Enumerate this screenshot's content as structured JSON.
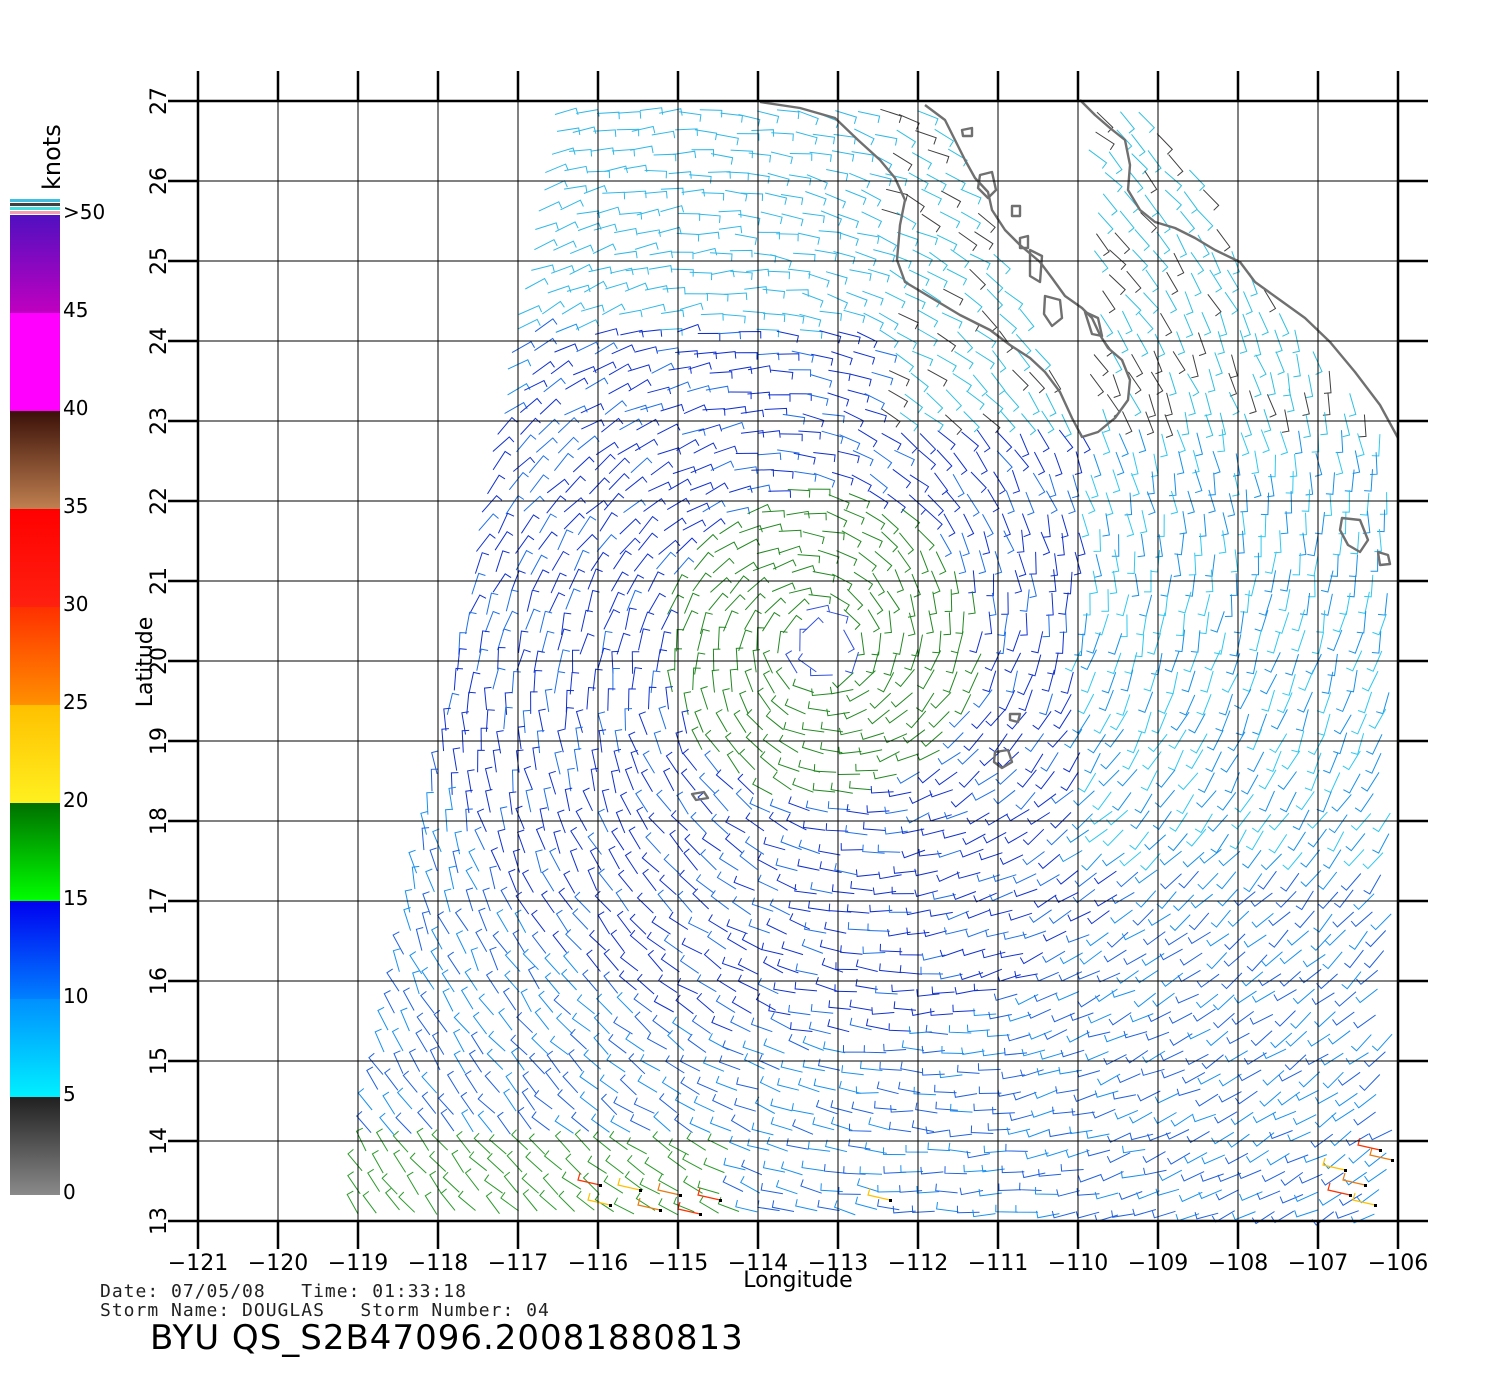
{
  "colorbar": {
    "unit": "knots",
    "labels": [
      "0",
      "5",
      "10",
      "15",
      "20",
      "25",
      "30",
      "35",
      "40",
      "45",
      ">50"
    ],
    "bands": [
      {
        "from": 0,
        "to": 5,
        "top": "#202020",
        "bottom": "#8a8a8a"
      },
      {
        "from": 5,
        "to": 10,
        "top": "#0090ff",
        "bottom": "#00f0ff"
      },
      {
        "from": 10,
        "to": 15,
        "top": "#0000f0",
        "bottom": "#0080ff"
      },
      {
        "from": 15,
        "to": 20,
        "top": "#007000",
        "bottom": "#00ff00"
      },
      {
        "from": 20,
        "to": 25,
        "top": "#ffc000",
        "bottom": "#fff020"
      },
      {
        "from": 25,
        "to": 30,
        "top": "#ff3000",
        "bottom": "#ff9000"
      },
      {
        "from": 30,
        "to": 35,
        "top": "#ff0000",
        "bottom": "#ff2010"
      },
      {
        "from": 35,
        "to": 40,
        "top": "#3a1008",
        "bottom": "#c08050"
      },
      {
        "from": 40,
        "to": 45,
        "top": "#ff00ff",
        "bottom": "#ff00ff"
      },
      {
        "from": 45,
        "to": 50,
        "top": "#5010c0",
        "bottom": "#c000c0"
      }
    ]
  },
  "axes": {
    "xlabel": "Longitude",
    "ylabel": "Latitude",
    "lon_ticks": [
      -121,
      -120,
      -119,
      -118,
      -117,
      -116,
      -115,
      -114,
      -113,
      -112,
      -111,
      -110,
      -109,
      -108,
      -107,
      -106
    ],
    "lon_tick_labels": [
      "−121",
      "−120",
      "−119",
      "−118",
      "−117",
      "−116",
      "−115",
      "−114",
      "−113",
      "−112",
      "−111",
      "−110",
      "−109",
      "−108",
      "−107",
      "−106"
    ],
    "lat_ticks": [
      13,
      14,
      15,
      16,
      17,
      18,
      19,
      20,
      21,
      22,
      23,
      24,
      25,
      26,
      27
    ],
    "lat_tick_labels": [
      "13",
      "14",
      "15",
      "16",
      "17",
      "18",
      "19",
      "20",
      "21",
      "22",
      "23",
      "24",
      "25",
      "26",
      "27"
    ],
    "lon_range": [
      -121,
      -106
    ],
    "lat_range": [
      13,
      27
    ]
  },
  "storm": {
    "center_lon": -113.2,
    "center_lat": 20.2,
    "date_line": "Date: 07/05/08   Time: 01:33:18",
    "name_line": "Storm Name: DOUGLAS   Storm Number: 04",
    "product_id": "BYU QS_S2B47096.20081880813"
  },
  "colors": {
    "coastline": "#707070",
    "grid": "#000000",
    "background": "#ffffff"
  }
}
